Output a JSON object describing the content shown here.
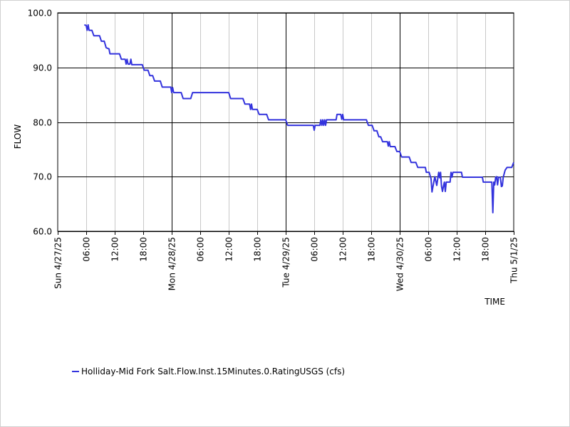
{
  "chart_data": {
    "type": "line",
    "title": "",
    "xlabel": "TIME",
    "ylabel": "FLOW",
    "x_unit": "hours since Sun 4/27/25 00:00",
    "xlim": [
      0,
      96
    ],
    "ylim": [
      60,
      100
    ],
    "y_ticks": [
      {
        "value": 60,
        "label": "60.0"
      },
      {
        "value": 70,
        "label": "70.0"
      },
      {
        "value": 80,
        "label": "80.0"
      },
      {
        "value": 90,
        "label": "90.0"
      },
      {
        "value": 100,
        "label": "100.0"
      }
    ],
    "x_ticks": [
      {
        "value": 0,
        "label": "Sun 4/27/25",
        "major": true
      },
      {
        "value": 6,
        "label": "06:00",
        "major": false
      },
      {
        "value": 12,
        "label": "12:00",
        "major": false
      },
      {
        "value": 18,
        "label": "18:00",
        "major": false
      },
      {
        "value": 24,
        "label": "Mon 4/28/25",
        "major": true
      },
      {
        "value": 30,
        "label": "06:00",
        "major": false
      },
      {
        "value": 36,
        "label": "12:00",
        "major": false
      },
      {
        "value": 42,
        "label": "18:00",
        "major": false
      },
      {
        "value": 48,
        "label": "Tue 4/29/25",
        "major": true
      },
      {
        "value": 54,
        "label": "06:00",
        "major": false
      },
      {
        "value": 60,
        "label": "12:00",
        "major": false
      },
      {
        "value": 66,
        "label": "18:00",
        "major": false
      },
      {
        "value": 72,
        "label": "Wed 4/30/25",
        "major": true
      },
      {
        "value": 78,
        "label": "06:00",
        "major": false
      },
      {
        "value": 84,
        "label": "12:00",
        "major": false
      },
      {
        "value": 90,
        "label": "18:00",
        "major": false
      },
      {
        "value": 96,
        "label": "Thu 5/1/25",
        "major": true
      }
    ],
    "grid": true,
    "legend_position": "bottom-left",
    "series": [
      {
        "name": "Holliday-Mid Fork Salt.Flow.Inst.15Minutes.0.RatingUSGS (cfs)",
        "color": "#3333dd",
        "points": [
          [
            5.6,
            97.8
          ],
          [
            6.0,
            97.7
          ],
          [
            6.2,
            96.8
          ],
          [
            6.4,
            97.8
          ],
          [
            6.6,
            96.8
          ],
          [
            7.2,
            96.8
          ],
          [
            7.6,
            95.8
          ],
          [
            8.8,
            95.8
          ],
          [
            9.2,
            94.8
          ],
          [
            9.8,
            94.8
          ],
          [
            10.2,
            93.6
          ],
          [
            10.8,
            93.4
          ],
          [
            11.0,
            92.5
          ],
          [
            13.0,
            92.5
          ],
          [
            13.4,
            91.5
          ],
          [
            14.2,
            91.5
          ],
          [
            14.4,
            90.6
          ],
          [
            14.6,
            91.5
          ],
          [
            14.8,
            90.6
          ],
          [
            15.2,
            90.6
          ],
          [
            15.4,
            91.5
          ],
          [
            15.6,
            90.5
          ],
          [
            17.8,
            90.5
          ],
          [
            18.2,
            89.5
          ],
          [
            19.0,
            89.5
          ],
          [
            19.4,
            88.5
          ],
          [
            20.0,
            88.5
          ],
          [
            20.4,
            87.5
          ],
          [
            21.6,
            87.5
          ],
          [
            22.0,
            86.4
          ],
          [
            23.8,
            86.4
          ],
          [
            24.0,
            85.4
          ],
          [
            24.2,
            86.3
          ],
          [
            24.4,
            85.4
          ],
          [
            26.0,
            85.4
          ],
          [
            26.4,
            84.3
          ],
          [
            28.0,
            84.3
          ],
          [
            28.4,
            85.4
          ],
          [
            36.0,
            85.4
          ],
          [
            36.4,
            84.3
          ],
          [
            39.0,
            84.3
          ],
          [
            39.4,
            83.3
          ],
          [
            40.4,
            83.3
          ],
          [
            40.6,
            82.3
          ],
          [
            40.8,
            83.3
          ],
          [
            41.0,
            82.3
          ],
          [
            42.0,
            82.3
          ],
          [
            42.4,
            81.4
          ],
          [
            44.0,
            81.4
          ],
          [
            44.4,
            80.4
          ],
          [
            48.0,
            80.4
          ],
          [
            48.4,
            79.4
          ],
          [
            53.8,
            79.4
          ],
          [
            54.0,
            78.5
          ],
          [
            54.2,
            79.4
          ],
          [
            55.2,
            79.4
          ],
          [
            55.4,
            80.4
          ],
          [
            55.6,
            79.4
          ],
          [
            55.8,
            80.4
          ],
          [
            56.0,
            79.4
          ],
          [
            56.2,
            80.4
          ],
          [
            56.4,
            79.4
          ],
          [
            56.6,
            80.4
          ],
          [
            58.6,
            80.4
          ],
          [
            58.8,
            81.4
          ],
          [
            59.6,
            81.4
          ],
          [
            59.8,
            80.5
          ],
          [
            60.0,
            81.4
          ],
          [
            60.2,
            80.4
          ],
          [
            65.0,
            80.4
          ],
          [
            65.4,
            79.4
          ],
          [
            66.2,
            79.4
          ],
          [
            66.6,
            78.4
          ],
          [
            67.2,
            78.4
          ],
          [
            67.6,
            77.3
          ],
          [
            68.0,
            77.3
          ],
          [
            68.4,
            76.4
          ],
          [
            69.4,
            76.4
          ],
          [
            69.6,
            75.6
          ],
          [
            69.8,
            76.4
          ],
          [
            70.0,
            75.5
          ],
          [
            71.0,
            75.5
          ],
          [
            71.4,
            74.6
          ],
          [
            72.0,
            74.6
          ],
          [
            72.4,
            73.6
          ],
          [
            74.0,
            73.6
          ],
          [
            74.4,
            72.6
          ],
          [
            75.4,
            72.6
          ],
          [
            75.8,
            71.7
          ],
          [
            77.4,
            71.7
          ],
          [
            77.6,
            70.8
          ],
          [
            78.2,
            70.8
          ],
          [
            78.6,
            69.6
          ],
          [
            78.8,
            67.2
          ],
          [
            79.0,
            68.2
          ],
          [
            79.4,
            70.0
          ],
          [
            79.8,
            68.4
          ],
          [
            80.2,
            70.8
          ],
          [
            80.4,
            69.8
          ],
          [
            80.6,
            70.8
          ],
          [
            80.8,
            68.2
          ],
          [
            81.0,
            67.3
          ],
          [
            81.2,
            68.2
          ],
          [
            81.4,
            69.0
          ],
          [
            81.6,
            67.3
          ],
          [
            81.8,
            69.0
          ],
          [
            82.6,
            69.0
          ],
          [
            82.8,
            70.8
          ],
          [
            83.0,
            69.9
          ],
          [
            83.2,
            70.8
          ],
          [
            85.0,
            70.8
          ],
          [
            85.2,
            69.9
          ],
          [
            89.4,
            69.9
          ],
          [
            89.6,
            69.0
          ],
          [
            91.4,
            69.0
          ],
          [
            91.6,
            63.4
          ],
          [
            91.8,
            69.0
          ],
          [
            92.0,
            68.5
          ],
          [
            92.2,
            69.9
          ],
          [
            92.4,
            70.0
          ],
          [
            92.6,
            68.5
          ],
          [
            92.8,
            69.9
          ],
          [
            93.2,
            69.9
          ],
          [
            93.4,
            68.2
          ],
          [
            93.6,
            68.3
          ],
          [
            93.8,
            69.9
          ],
          [
            94.2,
            71.2
          ],
          [
            94.6,
            71.7
          ],
          [
            95.6,
            71.7
          ],
          [
            95.8,
            72.2
          ],
          [
            96.0,
            72.6
          ]
        ]
      }
    ]
  }
}
